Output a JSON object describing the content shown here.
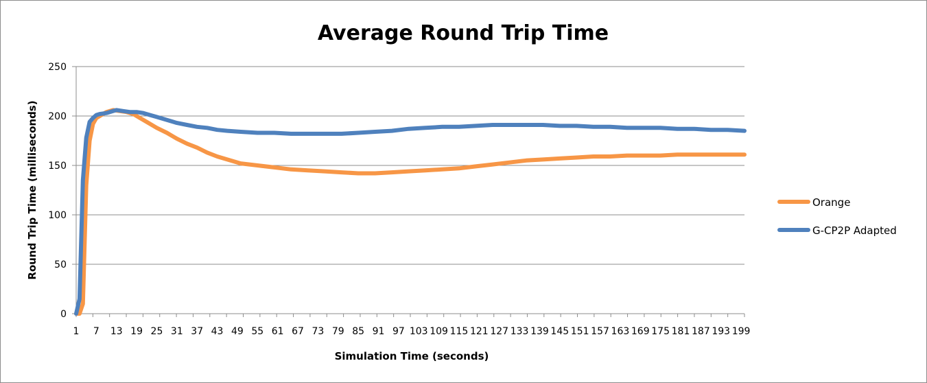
{
  "chart_data": {
    "type": "line",
    "title": "Average Round Trip Time",
    "xlabel": "Simulation Time (seconds)",
    "ylabel": "Round Trip Time (milliseconds)",
    "ylim": [
      0,
      250
    ],
    "y_ticks": [
      0,
      50,
      100,
      150,
      200,
      250
    ],
    "x_range": [
      1,
      200
    ],
    "x_tick_labels": [
      "1",
      "7",
      "13",
      "19",
      "25",
      "31",
      "37",
      "43",
      "49",
      "55",
      "61",
      "67",
      "73",
      "79",
      "85",
      "91",
      "97",
      "103",
      "109",
      "115",
      "121",
      "127",
      "133",
      "139",
      "145",
      "151",
      "157",
      "163",
      "169",
      "175",
      "181",
      "187",
      "193",
      "199"
    ],
    "grid": "horizontal",
    "legend_position": "right",
    "series": [
      {
        "name": "Orange",
        "color": "#f79646",
        "points": [
          [
            1,
            0
          ],
          [
            2,
            0
          ],
          [
            3,
            10
          ],
          [
            4,
            130
          ],
          [
            5,
            175
          ],
          [
            6,
            192
          ],
          [
            7,
            198
          ],
          [
            8,
            200
          ],
          [
            10,
            204
          ],
          [
            12,
            206
          ],
          [
            14,
            205
          ],
          [
            16,
            204
          ],
          [
            18,
            202
          ],
          [
            20,
            198
          ],
          [
            22,
            194
          ],
          [
            25,
            188
          ],
          [
            28,
            183
          ],
          [
            31,
            177
          ],
          [
            34,
            172
          ],
          [
            37,
            168
          ],
          [
            40,
            163
          ],
          [
            43,
            159
          ],
          [
            46,
            156
          ],
          [
            50,
            152
          ],
          [
            55,
            150
          ],
          [
            60,
            148
          ],
          [
            65,
            146
          ],
          [
            70,
            145
          ],
          [
            75,
            144
          ],
          [
            80,
            143
          ],
          [
            85,
            142
          ],
          [
            90,
            142
          ],
          [
            95,
            143
          ],
          [
            100,
            144
          ],
          [
            105,
            145
          ],
          [
            110,
            146
          ],
          [
            115,
            147
          ],
          [
            120,
            149
          ],
          [
            125,
            151
          ],
          [
            130,
            153
          ],
          [
            135,
            155
          ],
          [
            140,
            156
          ],
          [
            145,
            157
          ],
          [
            150,
            158
          ],
          [
            155,
            159
          ],
          [
            160,
            159
          ],
          [
            165,
            160
          ],
          [
            170,
            160
          ],
          [
            175,
            160
          ],
          [
            180,
            161
          ],
          [
            185,
            161
          ],
          [
            190,
            161
          ],
          [
            195,
            161
          ],
          [
            200,
            161
          ]
        ]
      },
      {
        "name": "G-CP2P Adapted",
        "color": "#4f81bd",
        "points": [
          [
            1,
            0
          ],
          [
            2,
            15
          ],
          [
            3,
            135
          ],
          [
            4,
            178
          ],
          [
            5,
            194
          ],
          [
            6,
            198
          ],
          [
            7,
            201
          ],
          [
            8,
            202
          ],
          [
            10,
            203
          ],
          [
            12,
            205
          ],
          [
            13,
            206
          ],
          [
            15,
            205
          ],
          [
            17,
            204
          ],
          [
            19,
            204
          ],
          [
            21,
            203
          ],
          [
            23,
            201
          ],
          [
            25,
            199
          ],
          [
            28,
            196
          ],
          [
            31,
            193
          ],
          [
            34,
            191
          ],
          [
            37,
            189
          ],
          [
            40,
            188
          ],
          [
            43,
            186
          ],
          [
            46,
            185
          ],
          [
            50,
            184
          ],
          [
            55,
            183
          ],
          [
            60,
            183
          ],
          [
            65,
            182
          ],
          [
            70,
            182
          ],
          [
            75,
            182
          ],
          [
            80,
            182
          ],
          [
            85,
            183
          ],
          [
            90,
            184
          ],
          [
            95,
            185
          ],
          [
            100,
            187
          ],
          [
            105,
            188
          ],
          [
            110,
            189
          ],
          [
            115,
            189
          ],
          [
            120,
            190
          ],
          [
            125,
            191
          ],
          [
            130,
            191
          ],
          [
            135,
            191
          ],
          [
            140,
            191
          ],
          [
            145,
            190
          ],
          [
            150,
            190
          ],
          [
            155,
            189
          ],
          [
            160,
            189
          ],
          [
            165,
            188
          ],
          [
            170,
            188
          ],
          [
            175,
            188
          ],
          [
            180,
            187
          ],
          [
            185,
            187
          ],
          [
            190,
            186
          ],
          [
            195,
            186
          ],
          [
            200,
            185
          ]
        ]
      }
    ]
  }
}
